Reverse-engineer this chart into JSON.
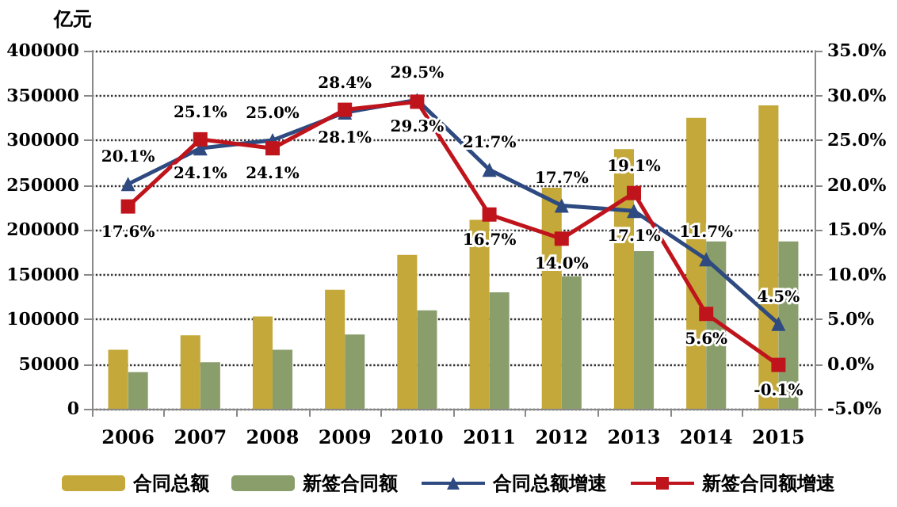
{
  "chart_data": {
    "type": "bar",
    "ylabel": "亿元",
    "categories": [
      "2006",
      "2007",
      "2008",
      "2009",
      "2010",
      "2011",
      "2012",
      "2013",
      "2014",
      "2015"
    ],
    "series": [
      {
        "name": "合同总额",
        "color": "#c4a83a",
        "values": [
          66000,
          82000,
          103000,
          133000,
          172000,
          211000,
          247000,
          290000,
          325000,
          339000
        ]
      },
      {
        "name": "新签合同额",
        "color": "#8a9e6c",
        "values": [
          41000,
          52000,
          66000,
          83000,
          110000,
          130000,
          148000,
          176000,
          187000,
          187000
        ]
      },
      {
        "name": "合同总额增速",
        "type": "line",
        "axis": "y2",
        "marker": "triangle",
        "color": "#2e4a80",
        "value_labels": [
          "20.1%",
          "24.1%",
          "25.0%",
          "28.1%",
          "29.5%",
          "21.7%",
          "17.7%",
          "17.1%",
          "11.7%",
          "4.5%"
        ],
        "values": [
          20.1,
          24.1,
          25.0,
          28.1,
          29.5,
          21.7,
          17.7,
          17.1,
          11.7,
          4.5
        ]
      },
      {
        "name": "新签合同额增速",
        "type": "line",
        "axis": "y2",
        "marker": "square",
        "color": "#c0141c",
        "value_labels": [
          "17.6%",
          "25.1%",
          "24.1%",
          "28.4%",
          "29.3%",
          "16.7%",
          "14.0%",
          "19.1%",
          "5.6%",
          "-0.1%"
        ],
        "values": [
          17.6,
          25.1,
          24.1,
          28.4,
          29.3,
          16.7,
          14.0,
          19.1,
          5.6,
          -0.1
        ]
      }
    ],
    "ylim": [
      0,
      400000
    ],
    "yticks": [
      0,
      50000,
      100000,
      150000,
      200000,
      250000,
      300000,
      350000,
      400000
    ],
    "y2lim": [
      -5,
      35
    ],
    "y2ticks": [
      {
        "value": -5,
        "label": "-5.0%"
      },
      {
        "value": 0,
        "label": "0.0%"
      },
      {
        "value": 5,
        "label": "5.0%"
      },
      {
        "value": 10,
        "label": "10.0%"
      },
      {
        "value": 15,
        "label": "15.0%"
      },
      {
        "value": 20,
        "label": "20.0%"
      },
      {
        "value": 25,
        "label": "25.0%"
      },
      {
        "value": 30,
        "label": "30.0%"
      },
      {
        "value": 35,
        "label": "35.0%"
      }
    ],
    "grid": "y",
    "legend": "bottom"
  }
}
